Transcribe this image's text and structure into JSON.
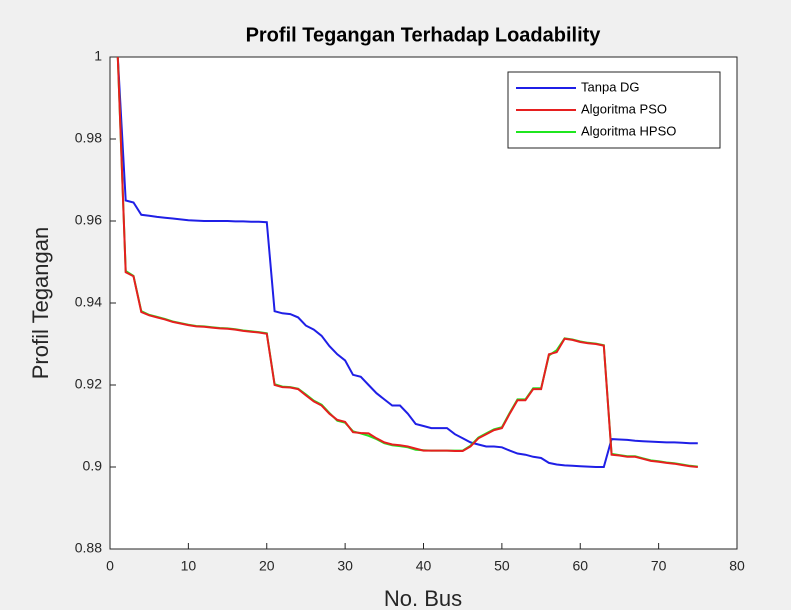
{
  "chart_data": {
    "type": "line",
    "title": "Profil Tegangan Terhadap Loadability",
    "xlabel": "No. Bus",
    "ylabel": "Profil Tegangan",
    "xlim": [
      0,
      80
    ],
    "xticks": [
      0,
      10,
      20,
      30,
      40,
      50,
      60,
      70,
      80
    ],
    "ylim": [
      0.88,
      1
    ],
    "yticks": [
      0.88,
      0.9,
      0.92,
      0.94,
      0.96,
      0.98,
      1
    ],
    "legend": "upper right",
    "x": [
      1,
      2,
      3,
      4,
      5,
      6,
      7,
      8,
      9,
      10,
      11,
      12,
      13,
      14,
      15,
      16,
      17,
      18,
      19,
      20,
      21,
      22,
      23,
      24,
      25,
      26,
      27,
      28,
      29,
      30,
      31,
      32,
      33,
      34,
      35,
      36,
      37,
      38,
      39,
      40,
      41,
      42,
      43,
      44,
      45,
      46,
      47,
      48,
      49,
      50,
      51,
      52,
      53,
      54,
      55,
      56,
      57,
      58,
      59,
      60,
      61,
      62,
      63,
      64,
      65,
      66,
      67,
      68,
      69,
      70,
      71,
      72,
      73,
      74,
      75
    ],
    "series": [
      {
        "name": "Tanpa DG",
        "color": "#1f1fe6",
        "values": [
          1.0,
          0.965,
          0.9645,
          0.9615,
          0.9613,
          0.961,
          0.9608,
          0.9606,
          0.9604,
          0.9602,
          0.9601,
          0.96,
          0.96,
          0.96,
          0.96,
          0.9599,
          0.9599,
          0.9598,
          0.9598,
          0.9597,
          0.938,
          0.9375,
          0.9373,
          0.9365,
          0.9345,
          0.9335,
          0.932,
          0.9295,
          0.9275,
          0.926,
          0.9225,
          0.922,
          0.92,
          0.918,
          0.9165,
          0.915,
          0.915,
          0.913,
          0.9105,
          0.91,
          0.9095,
          0.9095,
          0.9095,
          0.908,
          0.907,
          0.906,
          0.9055,
          0.905,
          0.905,
          0.9048,
          0.904,
          0.9033,
          0.903,
          0.9025,
          0.9022,
          0.901,
          0.9006,
          0.9004,
          0.9003,
          0.9002,
          0.9001,
          0.9,
          0.9,
          0.9068,
          0.9067,
          0.9066,
          0.9064,
          0.9063,
          0.9062,
          0.9061,
          0.906,
          0.906,
          0.9059,
          0.9058,
          0.9058
        ]
      },
      {
        "name": "Algoritma PSO",
        "color": "#e61f1f",
        "values": [
          1.0,
          0.9475,
          0.9465,
          0.9378,
          0.937,
          0.9365,
          0.936,
          0.9354,
          0.935,
          0.9346,
          0.9343,
          0.9342,
          0.934,
          0.9338,
          0.9337,
          0.9335,
          0.9332,
          0.933,
          0.9328,
          0.9325,
          0.92,
          0.9195,
          0.9194,
          0.919,
          0.9175,
          0.916,
          0.915,
          0.913,
          0.9115,
          0.911,
          0.9085,
          0.9083,
          0.9082,
          0.907,
          0.906,
          0.9055,
          0.9053,
          0.905,
          0.9045,
          0.904,
          0.904,
          0.904,
          0.904,
          0.9039,
          0.9039,
          0.905,
          0.907,
          0.908,
          0.909,
          0.9095,
          0.913,
          0.9163,
          0.9163,
          0.919,
          0.919,
          0.9275,
          0.928,
          0.9313,
          0.931,
          0.9305,
          0.9302,
          0.93,
          0.9296,
          0.903,
          0.9028,
          0.9025,
          0.9025,
          0.902,
          0.9015,
          0.9013,
          0.901,
          0.9008,
          0.9005,
          0.9002,
          0.9
        ]
      },
      {
        "name": "Algoritma HPSO",
        "color": "#1fe61f",
        "values": [
          1.0,
          0.9478,
          0.9466,
          0.938,
          0.9371,
          0.9366,
          0.9361,
          0.9355,
          0.9351,
          0.9347,
          0.9344,
          0.9343,
          0.9341,
          0.9339,
          0.9338,
          0.9336,
          0.9333,
          0.9331,
          0.9329,
          0.9326,
          0.9202,
          0.9196,
          0.9195,
          0.9191,
          0.9177,
          0.9162,
          0.9152,
          0.9132,
          0.9113,
          0.9108,
          0.9087,
          0.9082,
          0.9076,
          0.9068,
          0.9058,
          0.9053,
          0.9051,
          0.9048,
          0.9042,
          0.9041,
          0.904,
          0.904,
          0.904,
          0.904,
          0.904,
          0.9052,
          0.9072,
          0.9082,
          0.9092,
          0.9097,
          0.9132,
          0.9165,
          0.9165,
          0.9192,
          0.9192,
          0.9272,
          0.9285,
          0.9314,
          0.9311,
          0.9306,
          0.9303,
          0.9301,
          0.9297,
          0.9032,
          0.9029,
          0.9026,
          0.9026,
          0.9021,
          0.9016,
          0.9014,
          0.9011,
          0.9009,
          0.9006,
          0.9003,
          0.9001
        ]
      }
    ]
  }
}
